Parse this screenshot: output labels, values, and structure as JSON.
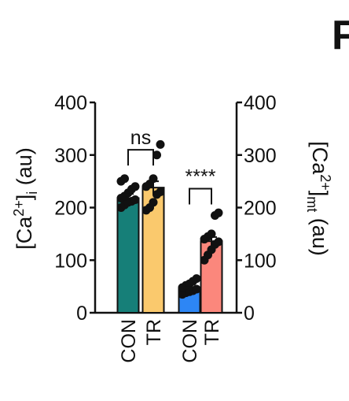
{
  "panel_letter": "F",
  "chart_data": {
    "type": "bar",
    "left_axis": {
      "label": "[Ca2+]i (au)",
      "ylim": [
        0,
        400
      ],
      "ticks": [
        0,
        100,
        200,
        300,
        400
      ]
    },
    "right_axis": {
      "label": "[Ca2+]mt (au)",
      "ylim": [
        0,
        400
      ],
      "ticks": [
        0,
        100,
        200,
        300,
        400
      ]
    },
    "categories": [
      "CON",
      "TR",
      "CON",
      "TR"
    ],
    "bars": [
      {
        "category": "CON",
        "axis": "left",
        "value": 218,
        "error": 8,
        "color": "#167f78",
        "points": [
          200,
          205,
          210,
          212,
          215,
          218,
          222,
          228,
          235,
          240,
          250,
          255
        ]
      },
      {
        "category": "TR",
        "axis": "left",
        "value": 238,
        "error": 12,
        "color": "#fac96d",
        "points": [
          195,
          200,
          210,
          225,
          230,
          240,
          245,
          255,
          300,
          320
        ]
      },
      {
        "category": "CON",
        "axis": "right",
        "value": 45,
        "error": 3,
        "color": "#2d86f5",
        "points": [
          35,
          38,
          40,
          42,
          45,
          48,
          52,
          55,
          60,
          65
        ]
      },
      {
        "category": "TR",
        "axis": "right",
        "value": 136,
        "error": 8,
        "color": "#fb877c",
        "points": [
          100,
          110,
          120,
          130,
          135,
          140,
          145,
          150,
          185,
          190
        ]
      }
    ],
    "significance": [
      {
        "between": [
          0,
          1
        ],
        "label": "ns"
      },
      {
        "between": [
          2,
          3
        ],
        "label": "****"
      }
    ]
  }
}
